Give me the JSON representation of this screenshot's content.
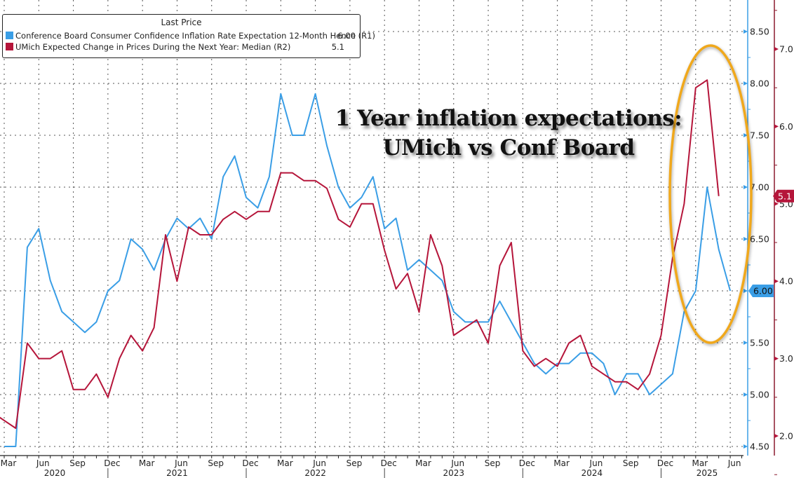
{
  "chart_data": {
    "type": "line",
    "title": "1 Year inflation expectations: UMich vs Conf Board",
    "title_lines": [
      "1 Year inflation expectations:",
      "UMich vs Conf Board"
    ],
    "legend": {
      "header": "Last Price",
      "placement": "top-left",
      "entries": [
        {
          "label": "Conference Board Consumer Confidence Inflation Rate Expectation 12-Month Hence  (R1)",
          "last": "6.00",
          "color": "#3a9ee6"
        },
        {
          "label": "UMich Expected Change in Prices During the Next Year: Median  (R2)",
          "last": "5.1",
          "color": "#b5153a"
        }
      ]
    },
    "x": {
      "start": "Mar 2020",
      "month_ticks": [
        "Mar",
        "Jun",
        "Sep",
        "Dec",
        "Mar",
        "Jun",
        "Sep",
        "Dec",
        "Mar",
        "Jun",
        "Sep",
        "Dec",
        "Mar",
        "Jun",
        "Sep",
        "Dec",
        "Mar",
        "Jun",
        "Sep",
        "Dec",
        "Mar",
        "Jun"
      ],
      "year_labels": [
        "2020",
        "2021",
        "2022",
        "2023",
        "2024",
        "2025"
      ]
    },
    "axes": {
      "r1": {
        "name": "R1",
        "ylim": [
          4.5,
          8.5
        ],
        "ticks": [
          "8.50",
          "8.00",
          "7.50",
          "7.00",
          "6.50",
          "6.00",
          "5.50",
          "5.00",
          "4.50"
        ],
        "color": "#3a9ee6"
      },
      "r2": {
        "name": "R2",
        "ylim": [
          1.5,
          7.6
        ],
        "ticks": [
          "7.0",
          "6.0",
          "5.0",
          "4.0",
          "3.0",
          "2.0"
        ],
        "color": "#b5153a"
      }
    },
    "grid": true,
    "series": [
      {
        "name": "Conference Board Consumer Confidence Inflation Rate Expectation 12-Month Hence",
        "axis": "r1",
        "start_month_index": 0,
        "values": [
          4.5,
          4.5,
          6.42,
          6.6,
          6.1,
          5.8,
          5.7,
          5.6,
          5.7,
          6.0,
          6.1,
          6.5,
          6.4,
          6.2,
          6.5,
          6.7,
          6.6,
          6.7,
          6.5,
          7.1,
          7.3,
          6.9,
          6.8,
          7.1,
          7.9,
          7.5,
          7.5,
          7.9,
          7.4,
          7.0,
          6.8,
          6.9,
          7.1,
          6.6,
          6.7,
          6.2,
          6.3,
          6.2,
          6.1,
          5.8,
          5.7,
          5.7,
          5.7,
          5.9,
          5.7,
          5.5,
          5.3,
          5.2,
          5.3,
          5.3,
          5.4,
          5.4,
          5.3,
          5.0,
          5.2,
          5.2,
          5.0,
          5.1,
          5.2,
          5.8,
          6.0,
          7.0,
          6.4,
          6.0
        ]
      },
      {
        "name": "UMich Expected Change in Prices During the Next Year: Median",
        "axis": "r2",
        "start_month_index": -1,
        "values": [
          2.3,
          2.2,
          2.1,
          3.2,
          3.0,
          3.0,
          3.1,
          2.6,
          2.6,
          2.8,
          2.5,
          3.0,
          3.3,
          3.1,
          3.4,
          4.6,
          4.0,
          4.7,
          4.6,
          4.6,
          4.8,
          4.9,
          4.8,
          4.9,
          4.9,
          5.4,
          5.4,
          5.3,
          5.3,
          5.2,
          4.8,
          4.7,
          5.0,
          5.0,
          4.4,
          3.9,
          4.1,
          3.6,
          4.6,
          4.2,
          3.3,
          3.4,
          3.5,
          3.2,
          4.2,
          4.5,
          3.1,
          2.9,
          3.0,
          2.9,
          3.2,
          3.3,
          2.9,
          2.8,
          2.7,
          2.7,
          2.6,
          2.8,
          3.3,
          4.3,
          5.0,
          6.5,
          6.6,
          5.1
        ]
      }
    ],
    "annotations": [
      {
        "type": "ellipse",
        "color": "#f0a81c",
        "around": "Jan 2025 - Jun 2025 spike"
      },
      {
        "type": "last-value-tag",
        "axis": "r1",
        "text": "6.00"
      },
      {
        "type": "last-value-tag",
        "axis": "r2",
        "text": "5.1"
      }
    ]
  }
}
